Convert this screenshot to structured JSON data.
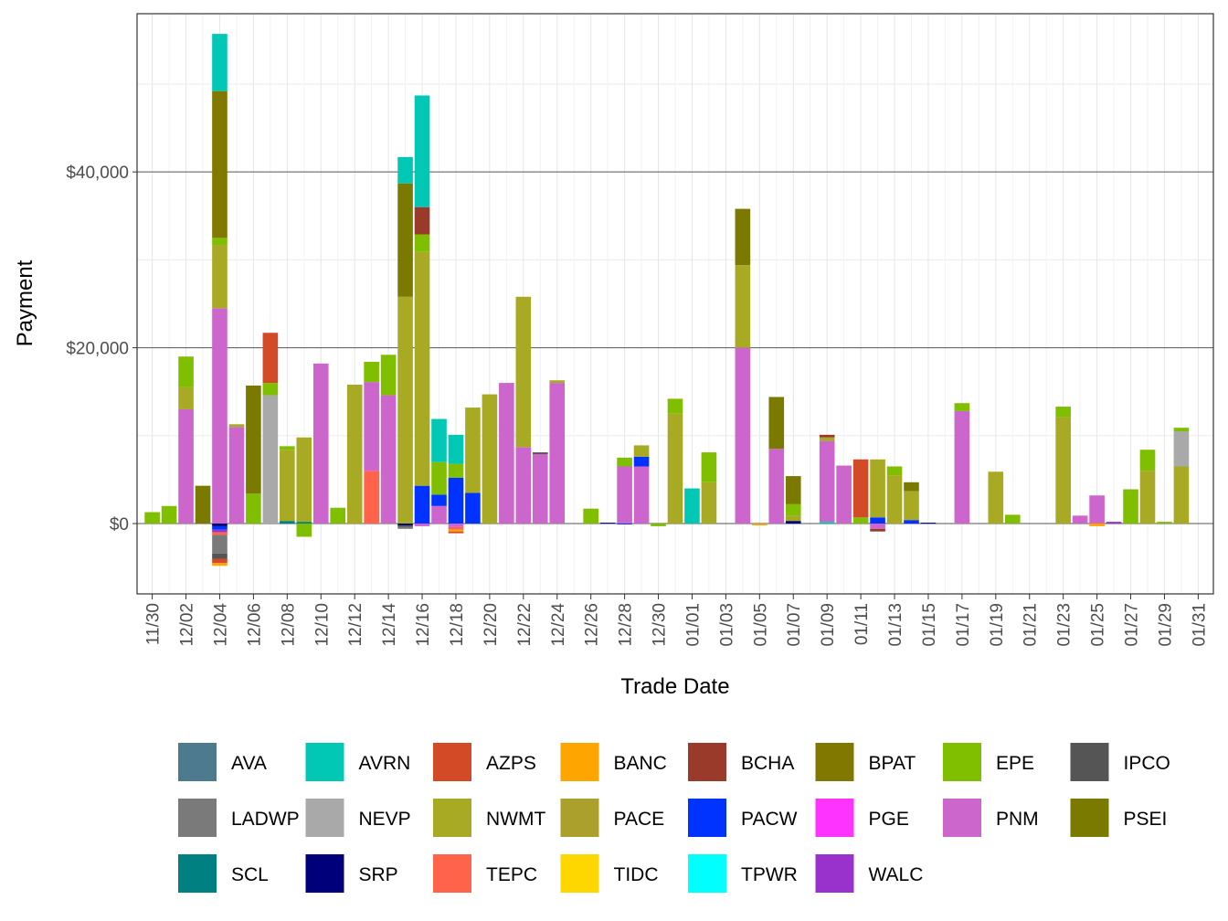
{
  "chart_data": {
    "type": "bar",
    "stacked": true,
    "xlabel": "Trade Date",
    "ylabel": "Payment",
    "ylim": [
      -8000,
      58000
    ],
    "y_ticks": [
      0,
      20000,
      40000
    ],
    "y_tick_labels": [
      "$0",
      "$20,000",
      "$40,000"
    ],
    "dates": [
      "11/30",
      "12/01",
      "12/02",
      "12/03",
      "12/04",
      "12/05",
      "12/06",
      "12/07",
      "12/08",
      "12/09",
      "12/10",
      "12/11",
      "12/12",
      "12/13",
      "12/14",
      "12/15",
      "12/16",
      "12/17",
      "12/18",
      "12/19",
      "12/20",
      "12/21",
      "12/22",
      "12/23",
      "12/24",
      "12/25",
      "12/26",
      "12/27",
      "12/28",
      "12/29",
      "12/30",
      "12/31",
      "01/01",
      "01/02",
      "01/03",
      "01/04",
      "01/05",
      "01/06",
      "01/07",
      "01/08",
      "01/09",
      "01/10",
      "01/11",
      "01/12",
      "01/13",
      "01/14",
      "01/15",
      "01/16",
      "01/17",
      "01/18",
      "01/19",
      "01/20",
      "01/21",
      "01/22",
      "01/23",
      "01/24",
      "01/25",
      "01/26",
      "01/27",
      "01/28",
      "01/29",
      "01/30",
      "01/31"
    ],
    "x_tick_labels": [
      "11/30",
      "12/02",
      "12/04",
      "12/06",
      "12/08",
      "12/10",
      "12/12",
      "12/14",
      "12/16",
      "12/18",
      "12/20",
      "12/22",
      "12/24",
      "12/26",
      "12/28",
      "12/30",
      "01/01",
      "01/03",
      "01/05",
      "01/07",
      "01/09",
      "01/11",
      "01/13",
      "01/15",
      "01/17",
      "01/19",
      "01/21",
      "01/23",
      "01/25",
      "01/27",
      "01/29",
      "01/31"
    ],
    "legend": [
      {
        "name": "AVA",
        "color": "#4e7a8e"
      },
      {
        "name": "AVRN",
        "color": "#00c8b4"
      },
      {
        "name": "AZPS",
        "color": "#d24a26"
      },
      {
        "name": "BANC",
        "color": "#ffa500"
      },
      {
        "name": "BCHA",
        "color": "#9a3a2a"
      },
      {
        "name": "BPAT",
        "color": "#817800"
      },
      {
        "name": "EPE",
        "color": "#7fbf00"
      },
      {
        "name": "IPCO",
        "color": "#555555"
      },
      {
        "name": "LADWP",
        "color": "#7a7a7a"
      },
      {
        "name": "NEVP",
        "color": "#a9a9a9"
      },
      {
        "name": "NWMT",
        "color": "#a8aa24"
      },
      {
        "name": "PACE",
        "color": "#aba02c"
      },
      {
        "name": "PACW",
        "color": "#0033ff"
      },
      {
        "name": "PGE",
        "color": "#ff33ff"
      },
      {
        "name": "PNM",
        "color": "#cc66cc"
      },
      {
        "name": "PSEI",
        "color": "#7a7a00"
      },
      {
        "name": "SCL",
        "color": "#008080"
      },
      {
        "name": "SRP",
        "color": "#00007a"
      },
      {
        "name": "TEPC",
        "color": "#ff634a"
      },
      {
        "name": "TIDC",
        "color": "#ffd700"
      },
      {
        "name": "TPWR",
        "color": "#00ffff"
      },
      {
        "name": "WALC",
        "color": "#9932cc"
      }
    ],
    "bars": [
      {
        "date": "11/30",
        "segments": [
          [
            "EPE",
            1300
          ]
        ]
      },
      {
        "date": "12/01",
        "segments": [
          [
            "EPE",
            2000
          ]
        ]
      },
      {
        "date": "12/02",
        "segments": [
          [
            "PNM",
            13000
          ],
          [
            "NWMT",
            2500
          ],
          [
            "EPE",
            3500
          ]
        ]
      },
      {
        "date": "12/03",
        "segments": [
          [
            "PSEI",
            4300
          ]
        ]
      },
      {
        "date": "12/04",
        "segments": [
          [
            "PNM",
            24500
          ],
          [
            "NWMT",
            7200
          ],
          [
            "EPE",
            800
          ],
          [
            "BPAT",
            16700
          ],
          [
            "AVRN",
            6500
          ],
          [
            "SRP",
            -300
          ],
          [
            "PACW",
            -400
          ],
          [
            "WALC",
            -300
          ],
          [
            "TEPC",
            -300
          ],
          [
            "LADWP",
            -2100
          ],
          [
            "IPCO",
            -600
          ],
          [
            "AZPS",
            -500
          ],
          [
            "BANC",
            -300
          ]
        ]
      },
      {
        "date": "12/05",
        "segments": [
          [
            "PNM",
            11000
          ],
          [
            "NWMT",
            300
          ]
        ]
      },
      {
        "date": "12/06",
        "segments": [
          [
            "EPE",
            3400
          ],
          [
            "PSEI",
            12300
          ]
        ]
      },
      {
        "date": "12/07",
        "segments": [
          [
            "NEVP",
            14600
          ],
          [
            "EPE",
            1400
          ],
          [
            "AZPS",
            5700
          ]
        ]
      },
      {
        "date": "12/08",
        "segments": [
          [
            "SCL",
            300
          ],
          [
            "NWMT",
            8100
          ],
          [
            "EPE",
            400
          ]
        ]
      },
      {
        "date": "12/09",
        "segments": [
          [
            "SCL",
            200
          ],
          [
            "NWMT",
            9600
          ],
          [
            "EPE",
            -1500
          ]
        ]
      },
      {
        "date": "12/10",
        "segments": [
          [
            "PNM",
            18200
          ]
        ]
      },
      {
        "date": "12/11",
        "segments": [
          [
            "EPE",
            1800
          ]
        ]
      },
      {
        "date": "12/12",
        "segments": [
          [
            "NWMT",
            15800
          ]
        ]
      },
      {
        "date": "12/13",
        "segments": [
          [
            "TEPC",
            6000
          ],
          [
            "PNM",
            10100
          ],
          [
            "EPE",
            2300
          ]
        ]
      },
      {
        "date": "12/14",
        "segments": [
          [
            "PNM",
            14600
          ],
          [
            "EPE",
            4600
          ]
        ]
      },
      {
        "date": "12/15",
        "segments": [
          [
            "NWMT",
            25800
          ],
          [
            "PSEI",
            12900
          ],
          [
            "AVRN",
            3000
          ],
          [
            "SRP",
            -200
          ],
          [
            "IPCO",
            -200
          ],
          [
            "LADWP",
            -200
          ]
        ]
      },
      {
        "date": "12/16",
        "segments": [
          [
            "PACW",
            4300
          ],
          [
            "NWMT",
            26600
          ],
          [
            "EPE",
            2000
          ],
          [
            "BCHA",
            3100
          ],
          [
            "AVRN",
            12700
          ],
          [
            "PNM",
            -300
          ]
        ]
      },
      {
        "date": "12/17",
        "segments": [
          [
            "PNM",
            2000
          ],
          [
            "PACW",
            1300
          ],
          [
            "EPE",
            3700
          ],
          [
            "AVRN",
            4900
          ]
        ]
      },
      {
        "date": "12/18",
        "segments": [
          [
            "PACW",
            5200
          ],
          [
            "EPE",
            1600
          ],
          [
            "AVRN",
            3300
          ],
          [
            "PNM",
            -400
          ],
          [
            "TEPC",
            -300
          ],
          [
            "BANC",
            -200
          ],
          [
            "AZPS",
            -200
          ]
        ]
      },
      {
        "date": "12/19",
        "segments": [
          [
            "PACW",
            3500
          ],
          [
            "NWMT",
            9700
          ]
        ]
      },
      {
        "date": "12/20",
        "segments": [
          [
            "NWMT",
            14700
          ]
        ]
      },
      {
        "date": "12/21",
        "segments": [
          [
            "PNM",
            16000
          ]
        ]
      },
      {
        "date": "12/22",
        "segments": [
          [
            "PNM",
            8700
          ],
          [
            "NWMT",
            17100
          ]
        ]
      },
      {
        "date": "12/23",
        "segments": [
          [
            "PNM",
            7900
          ],
          [
            "IPCO",
            200
          ]
        ]
      },
      {
        "date": "12/24",
        "segments": [
          [
            "PNM",
            16000
          ],
          [
            "NWMT",
            300
          ]
        ]
      },
      {
        "date": "12/25",
        "segments": []
      },
      {
        "date": "12/26",
        "segments": [
          [
            "EPE",
            1700
          ]
        ]
      },
      {
        "date": "12/27",
        "segments": [
          [
            "SRP",
            100
          ]
        ]
      },
      {
        "date": "12/28",
        "segments": [
          [
            "PNM",
            6500
          ],
          [
            "EPE",
            1000
          ],
          [
            "PACW",
            -100
          ]
        ]
      },
      {
        "date": "12/29",
        "segments": [
          [
            "PNM",
            6500
          ],
          [
            "PACW",
            1100
          ],
          [
            "NWMT",
            1300
          ]
        ]
      },
      {
        "date": "12/30",
        "segments": [
          [
            "EPE",
            -300
          ]
        ]
      },
      {
        "date": "12/31",
        "segments": [
          [
            "NWMT",
            12500
          ],
          [
            "EPE",
            1700
          ]
        ]
      },
      {
        "date": "01/01",
        "segments": [
          [
            "AVRN",
            4000
          ]
        ]
      },
      {
        "date": "01/02",
        "segments": [
          [
            "NWMT",
            4700
          ],
          [
            "EPE",
            3400
          ]
        ]
      },
      {
        "date": "01/03",
        "segments": []
      },
      {
        "date": "01/04",
        "segments": [
          [
            "PNM",
            20000
          ],
          [
            "NWMT",
            9400
          ],
          [
            "PSEI",
            6400
          ]
        ]
      },
      {
        "date": "01/05",
        "segments": [
          [
            "BANC",
            -200
          ]
        ]
      },
      {
        "date": "01/06",
        "segments": [
          [
            "PNM",
            8500
          ],
          [
            "PSEI",
            5900
          ]
        ]
      },
      {
        "date": "01/07",
        "segments": [
          [
            "SRP",
            300
          ],
          [
            "NWMT",
            600
          ],
          [
            "EPE",
            1300
          ],
          [
            "PSEI",
            3200
          ]
        ]
      },
      {
        "date": "01/08",
        "segments": []
      },
      {
        "date": "01/09",
        "segments": [
          [
            "AVRN",
            200
          ],
          [
            "PNM",
            9200
          ],
          [
            "NWMT",
            400
          ],
          [
            "BCHA",
            300
          ]
        ]
      },
      {
        "date": "01/10",
        "segments": [
          [
            "PNM",
            6600
          ]
        ]
      },
      {
        "date": "01/11",
        "segments": [
          [
            "EPE",
            700
          ],
          [
            "AZPS",
            6600
          ]
        ]
      },
      {
        "date": "01/12",
        "segments": [
          [
            "PACW",
            700
          ],
          [
            "NWMT",
            6600
          ],
          [
            "PNM",
            -600
          ],
          [
            "BCHA",
            -300
          ]
        ]
      },
      {
        "date": "01/13",
        "segments": [
          [
            "NWMT",
            5500
          ],
          [
            "EPE",
            1000
          ]
        ]
      },
      {
        "date": "01/14",
        "segments": [
          [
            "PACW",
            400
          ],
          [
            "NWMT",
            3300
          ],
          [
            "PSEI",
            1000
          ]
        ]
      },
      {
        "date": "01/15",
        "segments": [
          [
            "SRP",
            100
          ]
        ]
      },
      {
        "date": "01/16",
        "segments": []
      },
      {
        "date": "01/17",
        "segments": [
          [
            "PNM",
            12800
          ],
          [
            "EPE",
            900
          ]
        ]
      },
      {
        "date": "01/18",
        "segments": []
      },
      {
        "date": "01/19",
        "segments": [
          [
            "NWMT",
            5900
          ]
        ]
      },
      {
        "date": "01/20",
        "segments": [
          [
            "EPE",
            1000
          ]
        ]
      },
      {
        "date": "01/21",
        "segments": []
      },
      {
        "date": "01/22",
        "segments": []
      },
      {
        "date": "01/23",
        "segments": [
          [
            "NWMT",
            12100
          ],
          [
            "EPE",
            1200
          ]
        ]
      },
      {
        "date": "01/24",
        "segments": [
          [
            "PNM",
            900
          ]
        ]
      },
      {
        "date": "01/25",
        "segments": [
          [
            "PNM",
            3200
          ],
          [
            "BANC",
            -300
          ]
        ]
      },
      {
        "date": "01/26",
        "segments": [
          [
            "WALC",
            200
          ]
        ]
      },
      {
        "date": "01/27",
        "segments": [
          [
            "EPE",
            3900
          ]
        ]
      },
      {
        "date": "01/28",
        "segments": [
          [
            "NWMT",
            6000
          ],
          [
            "EPE",
            2400
          ]
        ]
      },
      {
        "date": "01/29",
        "segments": [
          [
            "EPE",
            200
          ]
        ]
      },
      {
        "date": "01/30",
        "segments": [
          [
            "NWMT",
            6500
          ],
          [
            "NEVP",
            4000
          ],
          [
            "EPE",
            400
          ]
        ]
      }
    ]
  }
}
